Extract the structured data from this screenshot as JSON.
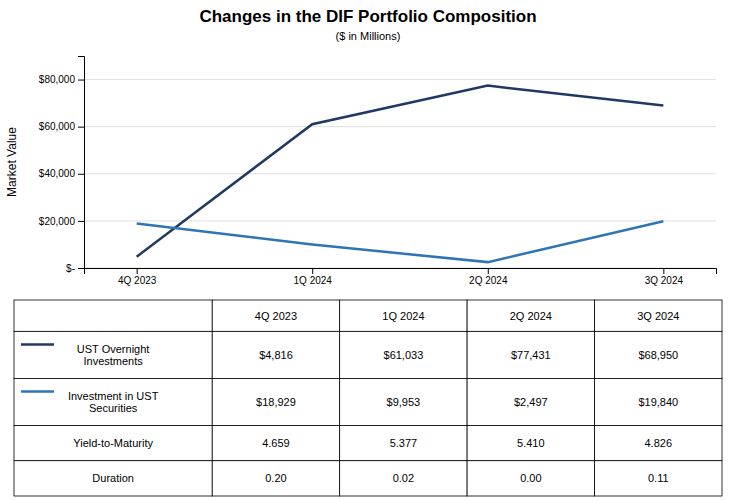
{
  "chart_data": {
    "type": "line",
    "title": "Changes in the DIF Portfolio Composition",
    "subtitle": "($ in Millions)",
    "categories": [
      "4Q 2023",
      "1Q 2024",
      "2Q 2024",
      "3Q 2024"
    ],
    "y_label": "Market Value",
    "ylim": [
      0,
      90000
    ],
    "yticks": [
      {
        "value": 0,
        "label": "$-"
      },
      {
        "value": 20000,
        "label": "$20,000"
      },
      {
        "value": 40000,
        "label": "$40,000"
      },
      {
        "value": 60000,
        "label": "$60,000"
      },
      {
        "value": 80000,
        "label": "$80,000"
      }
    ],
    "grid": true,
    "series": [
      {
        "name": "UST Overnight\nInvestments",
        "color": "#1F3864",
        "values": [
          4816,
          61033,
          77431,
          68950
        ],
        "value_labels": [
          "$4,816",
          "$61,033",
          "$77,431",
          "$68,950"
        ]
      },
      {
        "name": "Investment in UST\nSecurities",
        "color": "#2E75B6",
        "values": [
          18929,
          9953,
          2497,
          19840
        ],
        "value_labels": [
          "$18,929",
          "$9,953",
          "$2,497",
          "$19,840"
        ]
      }
    ],
    "table_rows": [
      {
        "name": "Yield-to-Maturity",
        "values": [
          4.659,
          5.377,
          5.41,
          4.826
        ],
        "value_labels": [
          "4.659",
          "5.377",
          "5.410",
          "4.826"
        ]
      },
      {
        "name": "Duration",
        "values": [
          0.2,
          0.02,
          0,
          0.11
        ],
        "value_labels": [
          "0.20",
          "0.02",
          "0.00",
          "0.11"
        ]
      }
    ]
  }
}
